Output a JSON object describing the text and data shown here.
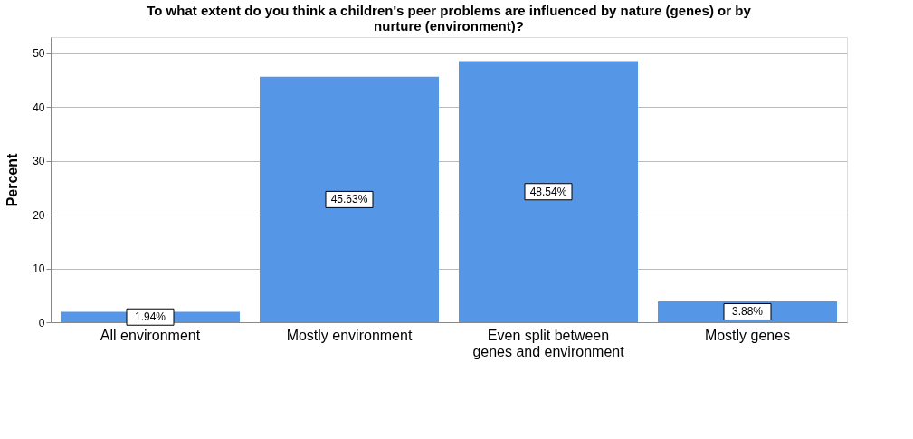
{
  "chart_data": {
    "type": "bar",
    "title": "To what extent do you think a children's peer problems are influenced by nature (genes) or by nurture (environment)?",
    "ylabel": "Percent",
    "categories": [
      "All environment",
      "Mostly environment",
      "Even split between genes and environment",
      "Mostly genes"
    ],
    "values": [
      1.94,
      45.63,
      48.54,
      3.88
    ],
    "value_labels": [
      "1.94%",
      "45.63%",
      "48.54%",
      "3.88%"
    ],
    "color": "#5596e6",
    "ylim": [
      0,
      53
    ],
    "yticks": [
      0,
      10,
      20,
      30,
      40,
      50
    ],
    "grid": "y"
  }
}
